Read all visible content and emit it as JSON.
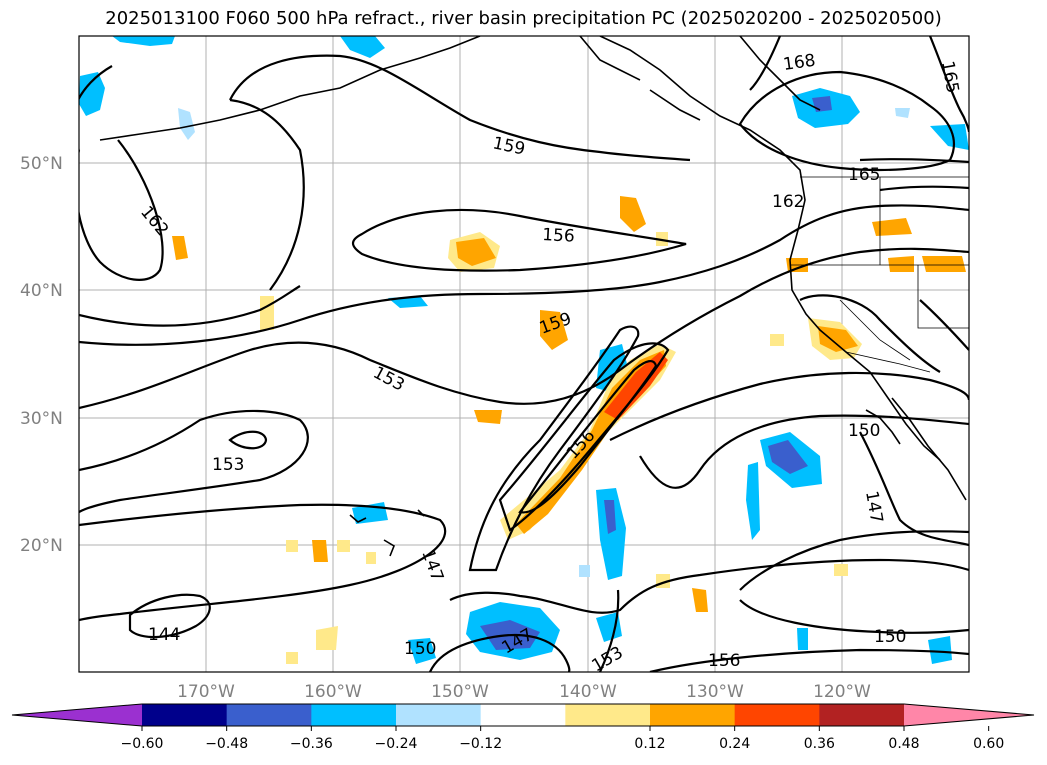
{
  "title": "2025013100 F060 500 hPa refract., river basin precipitation PC (2025020200 - 2025020500)",
  "map": {
    "lat_labels": [
      "50°N",
      "40°N",
      "30°N",
      "20°N"
    ],
    "lon_labels": [
      "170°W",
      "160°W",
      "150°W",
      "140°W",
      "130°W",
      "120°W"
    ],
    "contour_labels": [
      "168",
      "165",
      "159",
      "162",
      "165",
      "156",
      "162",
      "159",
      "153",
      "153",
      "156",
      "150",
      "147",
      "147",
      "150",
      "144",
      "150",
      "147",
      "153",
      "156"
    ]
  },
  "colorbar": {
    "tick_labels": [
      "−0.60",
      "−0.48",
      "−0.36",
      "−0.24",
      "−0.12",
      "0.12",
      "0.24",
      "0.36",
      "0.48",
      "0.60"
    ],
    "colors": [
      "#9b30d0",
      "#00008b",
      "#3a5fcd",
      "#00bfff",
      "#b0e2ff",
      "#ffffff",
      "#ffe98a",
      "#ffa500",
      "#ff4500",
      "#b22222",
      "#ff86a8"
    ]
  },
  "chart_data": {
    "type": "heatmap",
    "title": "2025013100 F060 500 hPa refract., river basin precipitation PC (2025020200 - 2025020500)",
    "lat_range": [
      10,
      60
    ],
    "lon_range": [
      -180,
      -110
    ],
    "contour_values": [
      144,
      147,
      150,
      153,
      156,
      159,
      162,
      165,
      168
    ],
    "colorbar_levels": [
      -0.6,
      -0.48,
      -0.36,
      -0.24,
      -0.12,
      0.12,
      0.24,
      0.36,
      0.48,
      0.6
    ],
    "grid": true
  }
}
